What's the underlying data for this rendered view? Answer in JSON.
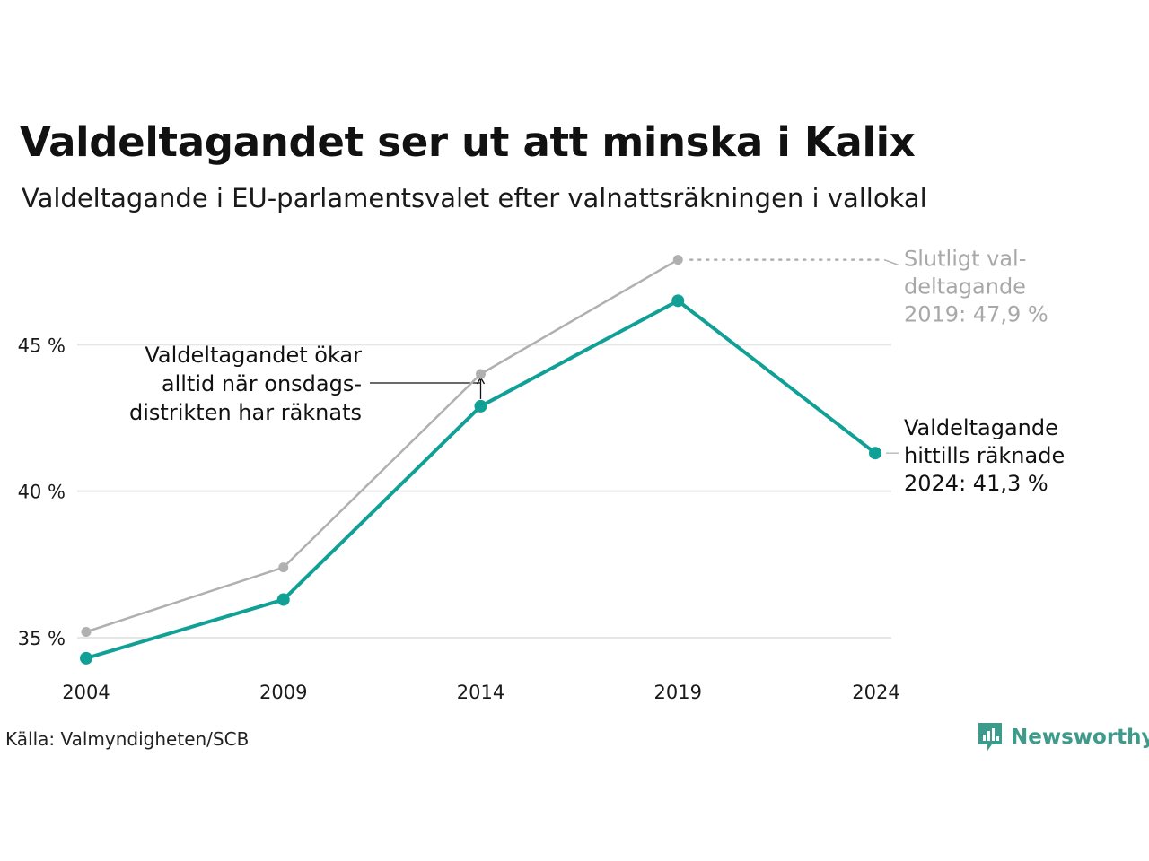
{
  "header": {
    "title": "Valdeltagandet ser ut att minska i Kalix",
    "subtitle": "Valdeltagande i EU-parlamentsvalet efter valnattsräkningen i vallokal"
  },
  "footer": {
    "source": "Källa: Valmyndigheten/SCB",
    "brand": "Newsworthy"
  },
  "colors": {
    "teal": "#11a095",
    "gray": "#b0b0b0",
    "grid": "#e6e6e6",
    "gray_text": "#a8a8a8"
  },
  "chart_data": {
    "type": "line",
    "x": [
      "2004",
      "2009",
      "2014",
      "2019",
      "2024"
    ],
    "ylim": [
      33.5,
      48.5
    ],
    "yticks": [
      35,
      40,
      45
    ],
    "ytick_labels": [
      "35 %",
      "40 %",
      "45 %"
    ],
    "grid": true,
    "series": [
      {
        "key": "final",
        "values": [
          35.2,
          37.4,
          44.0,
          47.9,
          null
        ]
      },
      {
        "key": "election_night",
        "values": [
          34.3,
          36.3,
          42.9,
          46.5,
          41.3
        ]
      }
    ],
    "annotations": [
      {
        "key": "final_2019",
        "lines": [
          "Slutligt val-",
          "deltagande",
          "2019: 47,9 %"
        ]
      },
      {
        "key": "current_2024",
        "lines": [
          "Valdeltagande",
          "hittills räknade",
          "2024: 41,3 %"
        ]
      },
      {
        "key": "wednesday",
        "lines": [
          "Valdeltagandet ökar",
          "alltid när onsdags-",
          "distrikten har räknats"
        ]
      }
    ]
  }
}
